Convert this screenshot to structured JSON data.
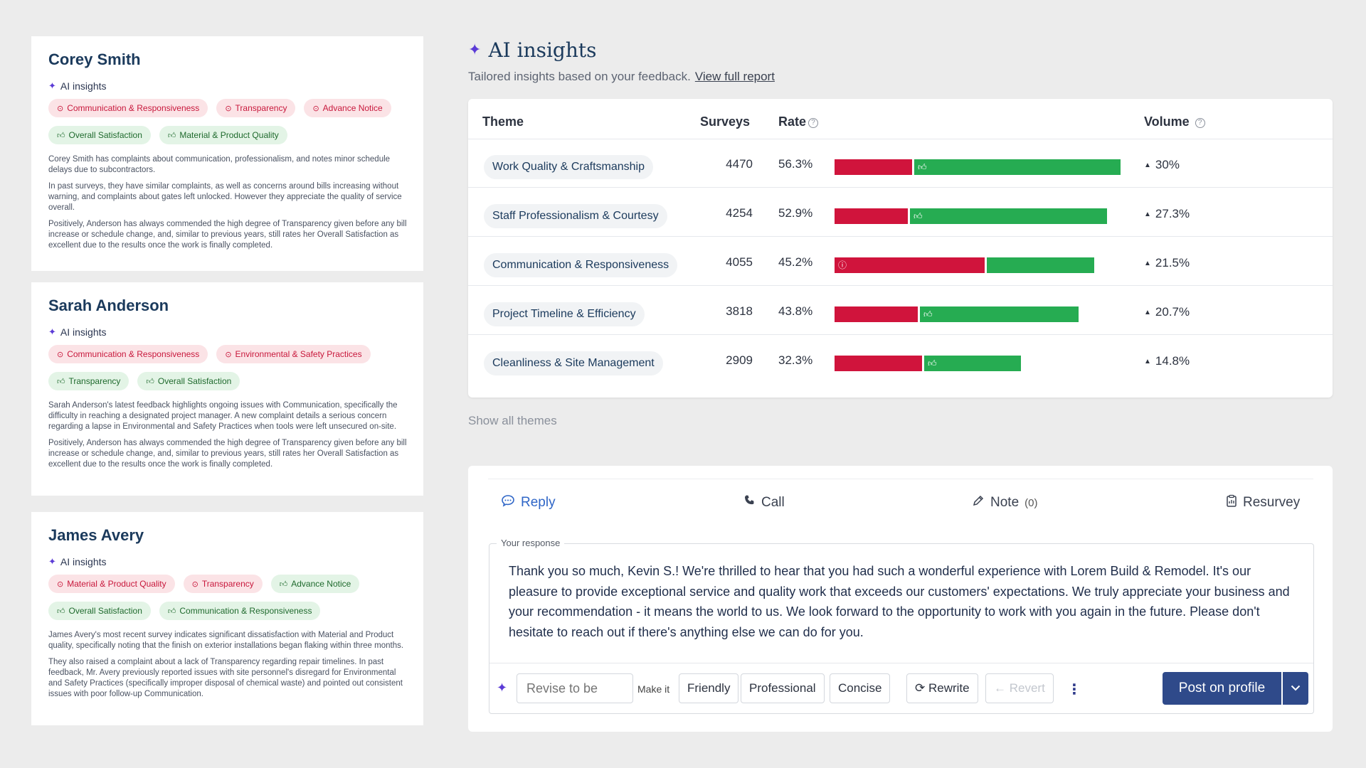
{
  "customers": [
    {
      "name": "Corey Smith",
      "ai_label": "AI insights",
      "tags": [
        {
          "label": "Communication & Responsiveness",
          "sentiment": "negative"
        },
        {
          "label": "Transparency",
          "sentiment": "negative"
        },
        {
          "label": "Advance Notice",
          "sentiment": "negative"
        },
        {
          "label": "Overall Satisfaction",
          "sentiment": "positive"
        },
        {
          "label": "Material & Product Quality",
          "sentiment": "positive"
        }
      ],
      "paragraphs": [
        "Corey Smith has complaints about communication, professionalism, and notes minor schedule delays due to subcontractors.",
        "In past surveys, they have similar complaints, as well as concerns around bills increasing without warning, and complaints about gates left unlocked. However they appreciate the quality of service overall.",
        "Positively, Anderson has always commended the high degree of Transparency given before any bill increase or schedule change, and, similar to previous years, still rates her Overall Satisfaction as excellent due to the results once the work is finally completed."
      ]
    },
    {
      "name": "Sarah Anderson",
      "ai_label": "AI insights",
      "tags": [
        {
          "label": "Communication & Responsiveness",
          "sentiment": "negative"
        },
        {
          "label": "Environmental & Safety Practices",
          "sentiment": "negative"
        },
        {
          "label": "Transparency",
          "sentiment": "positive"
        },
        {
          "label": "Overall Satisfaction",
          "sentiment": "positive"
        }
      ],
      "paragraphs": [
        "Sarah Anderson's latest feedback highlights ongoing issues with Communication, specifically the difficulty in reaching a designated project manager. A new complaint details a serious concern regarding a lapse in Environmental and Safety Practices when tools were left unsecured on-site.",
        "Positively, Anderson has always commended the high degree of Transparency given before any bill increase or schedule change, and, similar to previous years, still rates her Overall Satisfaction as excellent due to the results once the work is finally completed."
      ]
    },
    {
      "name": "James Avery",
      "ai_label": "AI insights",
      "tags": [
        {
          "label": "Material & Product Quality",
          "sentiment": "negative"
        },
        {
          "label": "Transparency",
          "sentiment": "negative"
        },
        {
          "label": "Advance Notice",
          "sentiment": "positive"
        },
        {
          "label": "Overall Satisfaction",
          "sentiment": "positive"
        },
        {
          "label": "Communication & Responsiveness",
          "sentiment": "positive"
        }
      ],
      "paragraphs": [
        "James Avery's most recent survey indicates significant dissatisfaction with Material and Product quality, specifically noting that the finish on exterior installations began flaking within three months.",
        "They also raised a complaint about a lack of Transparency regarding repair timelines. In past feedback, Mr. Avery previously reported issues with site personnel's disregard for Environmental and Safety Practices (specifically improper disposal of chemical waste) and pointed out consistent issues with poor follow-up Communication."
      ]
    }
  ],
  "insights": {
    "title": "AI insights",
    "subtitle": "Tailored insights based on your feedback.",
    "report_link": "View full report",
    "columns": {
      "theme": "Theme",
      "surveys": "Surveys",
      "rate": "Rate",
      "volume": "Volume"
    },
    "rows": [
      {
        "theme": "Work Quality & Craftsmanship",
        "surveys": "4470",
        "rate": "56.3%",
        "negative_share": 0.27,
        "total_scale": 1.0,
        "icon_on": "positive",
        "volume": "30%"
      },
      {
        "theme": "Staff Professionalism & Courtesy",
        "surveys": "4254",
        "rate": "52.9%",
        "negative_share": 0.27,
        "total_scale": 0.952,
        "icon_on": "positive",
        "volume": "27.3%"
      },
      {
        "theme": "Communication & Responsiveness",
        "surveys": "4055",
        "rate": "45.2%",
        "negative_share": 0.58,
        "total_scale": 0.907,
        "icon_on": "negative",
        "volume": "21.5%"
      },
      {
        "theme": "Project Timeline & Efficiency",
        "surveys": "3818",
        "rate": "43.8%",
        "negative_share": 0.34,
        "total_scale": 0.854,
        "icon_on": "positive",
        "volume": "20.7%"
      },
      {
        "theme": "Cleanliness & Site Management",
        "surveys": "2909",
        "rate": "32.3%",
        "negative_share": 0.47,
        "total_scale": 0.652,
        "icon_on": "positive",
        "volume": "14.8%"
      }
    ],
    "show_all": "Show all themes"
  },
  "response": {
    "tabs": {
      "reply": "Reply",
      "call": "Call",
      "note": "Note",
      "note_count": "(0)",
      "resurvey": "Resurvey"
    },
    "label": "Your response",
    "text": "Thank you so much, Kevin S.! We're thrilled to hear that you had such a wonderful experience with Lorem Build & Remodel. It's our pleasure to provide exceptional service and quality work that exceeds our customers' expectations. We truly appreciate your business and your recommendation - it means the world to us. We look forward to the opportunity to work with you again in the future. Please don't hesitate to reach out if there's anything else we can do for you.",
    "revise_placeholder": "Revise to be",
    "make_it": "Make it",
    "tones": [
      "Friendly",
      "Professional",
      "Concise"
    ],
    "rewrite": "Rewrite",
    "revert": "Revert",
    "post": "Post on profile"
  },
  "colors": {
    "negative": "#d0143c",
    "positive": "#26ac52",
    "primary": "#2f4a8a",
    "accent": "#5b3bd6"
  }
}
